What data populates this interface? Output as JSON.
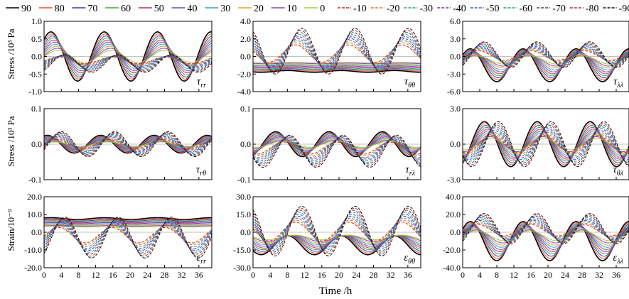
{
  "legend": {
    "placement": "top",
    "entries": [
      {
        "label": "90",
        "color": "#000000",
        "dash": false
      },
      {
        "label": "80",
        "color": "#e8572a",
        "dash": false
      },
      {
        "label": "70",
        "color": "#2d3bbf",
        "dash": false
      },
      {
        "label": "60",
        "color": "#3aa832",
        "dash": false
      },
      {
        "label": "50",
        "color": "#d11f7a",
        "dash": false
      },
      {
        "label": "40",
        "color": "#6a4fb3",
        "dash": false
      },
      {
        "label": "30",
        "color": "#2aa6c8",
        "dash": false
      },
      {
        "label": "20",
        "color": "#f09a2c",
        "dash": false
      },
      {
        "label": "10",
        "color": "#8e44c4",
        "dash": false
      },
      {
        "label": "0",
        "color": "#9ccf3a",
        "dash": false
      },
      {
        "label": "-10",
        "color": "#c7261d",
        "dash": true
      },
      {
        "label": "-20",
        "color": "#e86a1c",
        "dash": true
      },
      {
        "label": "-30",
        "color": "#2f9e5f",
        "dash": true
      },
      {
        "label": "-40",
        "color": "#7a2fb0",
        "dash": true
      },
      {
        "label": "-50",
        "color": "#2f58d8",
        "dash": true
      },
      {
        "label": "-60",
        "color": "#1a9a93",
        "dash": true
      },
      {
        "label": "-70",
        "color": "#444444",
        "dash": true
      },
      {
        "label": "-80",
        "color": "#b8212e",
        "dash": true
      },
      {
        "label": "-90",
        "color": "#111111",
        "dash": true
      }
    ]
  },
  "row_labels": [
    "Stress /10³ Pa",
    "Stress /10³ Pa",
    "Strain/10⁻⁹"
  ],
  "xlabel": "Time /h",
  "chart_data": [
    {
      "type": "line",
      "row": 0,
      "col": 0,
      "label_main": "τ",
      "label_sub": "rr",
      "xlim": [
        0,
        39
      ],
      "ylim": [
        -1.0,
        1.0
      ],
      "xticks": [
        0,
        4,
        8,
        12,
        16,
        20,
        24,
        28,
        32,
        36
      ],
      "yticks": [
        "-1.0",
        "-0.5",
        "0.0",
        "0.5",
        "1.0"
      ],
      "ytick_values": [
        -1.0,
        -0.5,
        0.0,
        0.5,
        1.0
      ],
      "period_h": 12.4,
      "phase_h": 3.3,
      "mid_north": 0.0,
      "amp_north": 0.7,
      "mid_south": -0.2,
      "amp_south": 0.25
    },
    {
      "type": "line",
      "row": 0,
      "col": 1,
      "label_main": "τ",
      "label_sub": "θθ",
      "xlim": [
        0,
        39
      ],
      "ylim": [
        -4.0,
        4.0
      ],
      "xticks": [
        0,
        4,
        8,
        12,
        16,
        20,
        24,
        28,
        32,
        36
      ],
      "yticks": [
        "-4.0",
        "-2.0",
        "0.0",
        "2.0",
        "4.0"
      ],
      "ytick_values": [
        -4.0,
        -2.0,
        0.0,
        2.0,
        4.0
      ],
      "period_h": 12.4,
      "phase_h": 9.8,
      "mid_north": -1.7,
      "amp_north": 0.1,
      "mid_south": 0.6,
      "amp_south": 2.6
    },
    {
      "type": "line",
      "row": 0,
      "col": 2,
      "label_main": "τ",
      "label_sub": "λλ",
      "xlim": [
        0,
        39
      ],
      "ylim": [
        -6.0,
        6.0
      ],
      "xticks": [
        0,
        4,
        8,
        12,
        16,
        20,
        24,
        28,
        32,
        36
      ],
      "yticks": [
        "-6.0",
        "-3.0",
        "0.0",
        "3.0",
        "6.0"
      ],
      "ytick_values": [
        -6.0,
        -3.0,
        0.0,
        3.0,
        6.0
      ],
      "period_h": 12.4,
      "phase_h": 3.5,
      "mid_north": -1.5,
      "amp_north": 2.8,
      "mid_south": 0.3,
      "amp_south": 2.2
    },
    {
      "type": "line",
      "row": 1,
      "col": 0,
      "label_main": "τ",
      "label_sub": "rθ",
      "xlim": [
        0,
        39
      ],
      "ylim": [
        -0.1,
        0.1
      ],
      "xticks": [
        0,
        4,
        8,
        12,
        16,
        20,
        24,
        28,
        32,
        36
      ],
      "yticks": [
        "-0.1",
        "0.0",
        "0.1"
      ],
      "ytick_values": [
        -0.1,
        0.0,
        0.1
      ],
      "period_h": 12.4,
      "phase_h": 2.5,
      "mid_north": 0.0,
      "amp_north": 0.025,
      "mid_south": 0.0,
      "amp_south": 0.035
    },
    {
      "type": "line",
      "row": 1,
      "col": 1,
      "label_main": "τ",
      "label_sub": "rλ",
      "xlim": [
        0,
        39
      ],
      "ylim": [
        -0.1,
        0.1
      ],
      "xticks": [
        0,
        4,
        8,
        12,
        16,
        20,
        24,
        28,
        32,
        36
      ],
      "yticks": [
        "-0.1",
        "0.0",
        "0.1"
      ],
      "ytick_values": [
        -0.1,
        0.0,
        0.1
      ],
      "period_h": 12.4,
      "phase_h": 7.0,
      "mid_north": 0.0,
      "amp_north": 0.035,
      "mid_south": -0.02,
      "amp_south": 0.045
    },
    {
      "type": "line",
      "row": 1,
      "col": 2,
      "label_main": "τ",
      "label_sub": "θλ",
      "xlim": [
        0,
        39
      ],
      "ylim": [
        -3.0,
        3.0
      ],
      "xticks": [
        0,
        4,
        8,
        12,
        16,
        20,
        24,
        28,
        32,
        36
      ],
      "yticks": [
        "-3.0",
        "0.0",
        "3.0"
      ],
      "ytick_values": [
        -3.0,
        0.0,
        3.0
      ],
      "period_h": 12.4,
      "phase_h": 6.8,
      "mid_north": 0.0,
      "amp_north": 1.9,
      "mid_south": 0.0,
      "amp_south": 1.9
    },
    {
      "type": "line",
      "row": 2,
      "col": 0,
      "label_main": "ε",
      "label_sub": "rr",
      "xlim": [
        0,
        39
      ],
      "ylim": [
        -20.0,
        20.0
      ],
      "xticks": [
        0,
        4,
        8,
        12,
        16,
        20,
        24,
        28,
        32,
        36
      ],
      "yticks": [
        "-20.0",
        "-10.0",
        "0.0",
        "10.0",
        "20.0"
      ],
      "ytick_values": [
        -20.0,
        -10.0,
        0.0,
        10.0,
        20.0
      ],
      "period_h": 12.4,
      "phase_h": 3.3,
      "mid_north": 7.7,
      "amp_north": 0.5,
      "mid_south": -3.0,
      "amp_south": 11.5
    },
    {
      "type": "line",
      "row": 2,
      "col": 1,
      "label_main": "ε",
      "label_sub": "θθ",
      "xlim": [
        0,
        39
      ],
      "ylim": [
        -30.0,
        30.0
      ],
      "xticks": [
        0,
        4,
        8,
        12,
        16,
        20,
        24,
        28,
        32,
        36
      ],
      "yticks": [
        "-30.0",
        "-15.0",
        "0.0",
        "15.0",
        "30.0"
      ],
      "ytick_values": [
        -30.0,
        -15.0,
        0.0,
        15.0,
        30.0
      ],
      "period_h": 12.4,
      "phase_h": 9.8,
      "mid_north": -11.0,
      "amp_north": 8.0,
      "mid_south": 1.0,
      "amp_south": 21.0
    },
    {
      "type": "line",
      "row": 2,
      "col": 2,
      "label_main": "ε",
      "label_sub": "λλ",
      "xlim": [
        0,
        39
      ],
      "ylim": [
        -40.0,
        40.0
      ],
      "xticks": [
        0,
        4,
        8,
        12,
        16,
        20,
        24,
        28,
        32,
        36
      ],
      "yticks": [
        "-40.0",
        "-20.0",
        "0.0",
        "20.0",
        "40.0"
      ],
      "ytick_values": [
        -40.0,
        -20.0,
        0.0,
        20.0,
        40.0
      ],
      "period_h": 12.4,
      "phase_h": 3.5,
      "mid_north": -10.0,
      "amp_north": 22.0,
      "mid_south": 4.0,
      "amp_south": 17.0
    }
  ]
}
